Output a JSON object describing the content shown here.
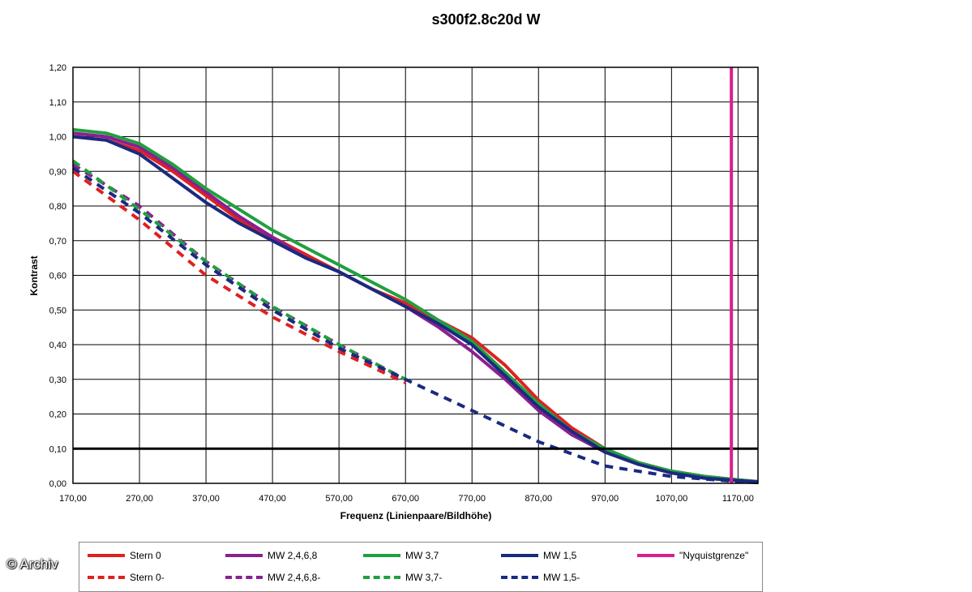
{
  "chart_data": {
    "type": "line",
    "title": "s300f2.8c20d W",
    "xlabel": "Frequenz (Linienpaare/Bildhöhe)",
    "ylabel": "Kontrast",
    "xlim": [
      170,
      1200
    ],
    "ylim": [
      0,
      1.2
    ],
    "x_ticks": [
      "170,00",
      "270,00",
      "370,00",
      "470,00",
      "570,00",
      "670,00",
      "770,00",
      "870,00",
      "970,00",
      "1070,00",
      "1170,00"
    ],
    "y_ticks": [
      "0,00",
      "0,10",
      "0,20",
      "0,30",
      "0,40",
      "0,50",
      "0,60",
      "0,70",
      "0,80",
      "0,90",
      "1,00",
      "1,10",
      "1,20"
    ],
    "grid": true,
    "reference_line_y": 0.1,
    "nyquist_x": 1160,
    "series": [
      {
        "name": "Stern 0",
        "color": "#e02020",
        "dash": false,
        "x": [
          170,
          220,
          270,
          320,
          370,
          420,
          470,
          520,
          570,
          620,
          670,
          720,
          770,
          820,
          870,
          920,
          970,
          1020,
          1070,
          1120,
          1170,
          1200
        ],
        "y": [
          1.0,
          0.99,
          0.96,
          0.9,
          0.83,
          0.76,
          0.71,
          0.66,
          0.61,
          0.56,
          0.52,
          0.47,
          0.42,
          0.34,
          0.24,
          0.16,
          0.1,
          0.06,
          0.035,
          0.02,
          0.01,
          0.005
        ]
      },
      {
        "name": "MW 2,4,6,8",
        "color": "#8a2090",
        "dash": false,
        "x": [
          170,
          220,
          270,
          320,
          370,
          420,
          470,
          520,
          570,
          620,
          670,
          720,
          770,
          820,
          870,
          920,
          970,
          1020,
          1070,
          1120,
          1170,
          1200
        ],
        "y": [
          1.01,
          1.0,
          0.97,
          0.91,
          0.84,
          0.77,
          0.71,
          0.65,
          0.61,
          0.56,
          0.51,
          0.45,
          0.38,
          0.3,
          0.21,
          0.14,
          0.09,
          0.055,
          0.03,
          0.015,
          0.008,
          0.004
        ]
      },
      {
        "name": "MW 3,7",
        "color": "#20a040",
        "dash": false,
        "x": [
          170,
          220,
          270,
          320,
          370,
          420,
          470,
          520,
          570,
          620,
          670,
          720,
          770,
          820,
          870,
          920,
          970,
          1020,
          1070,
          1120,
          1170,
          1200
        ],
        "y": [
          1.02,
          1.01,
          0.98,
          0.92,
          0.85,
          0.79,
          0.73,
          0.68,
          0.63,
          0.58,
          0.53,
          0.47,
          0.41,
          0.32,
          0.23,
          0.15,
          0.1,
          0.06,
          0.035,
          0.02,
          0.01,
          0.005
        ]
      },
      {
        "name": "MW 1,5",
        "color": "#1a2a80",
        "dash": false,
        "x": [
          170,
          220,
          270,
          320,
          370,
          420,
          470,
          520,
          570,
          620,
          670,
          720,
          770,
          820,
          870,
          920,
          970,
          1020,
          1070,
          1120,
          1170,
          1200
        ],
        "y": [
          1.0,
          0.99,
          0.95,
          0.88,
          0.81,
          0.75,
          0.7,
          0.65,
          0.61,
          0.56,
          0.51,
          0.46,
          0.4,
          0.31,
          0.22,
          0.15,
          0.09,
          0.055,
          0.03,
          0.015,
          0.008,
          0.004
        ]
      },
      {
        "name": "\"Nyquistgrenze\"",
        "color": "#d8208a",
        "dash": false,
        "x": [],
        "y": []
      },
      {
        "name": "Stern 0-",
        "color": "#e02020",
        "dash": true,
        "x": [
          170,
          270,
          370,
          470,
          570,
          670
        ],
        "y": [
          0.9,
          0.76,
          0.6,
          0.48,
          0.38,
          0.29
        ]
      },
      {
        "name": "MW 2,4,6,8-",
        "color": "#8a2090",
        "dash": true,
        "x": [
          170,
          270,
          370,
          470,
          570,
          670
        ],
        "y": [
          0.92,
          0.8,
          0.64,
          0.51,
          0.4,
          0.3
        ]
      },
      {
        "name": "MW 3,7-",
        "color": "#20a040",
        "dash": true,
        "x": [
          170,
          270,
          370,
          470,
          570,
          670
        ],
        "y": [
          0.93,
          0.79,
          0.64,
          0.51,
          0.4,
          0.3
        ]
      },
      {
        "name": "MW 1,5-",
        "color": "#1a2a80",
        "dash": true,
        "x": [
          170,
          270,
          370,
          470,
          570,
          670,
          770,
          870,
          970,
          1070,
          1170,
          1200
        ],
        "y": [
          0.91,
          0.78,
          0.63,
          0.5,
          0.39,
          0.3,
          0.21,
          0.12,
          0.05,
          0.02,
          0.005,
          0.002
        ]
      }
    ]
  },
  "legend": {
    "row1": [
      "Stern 0",
      "MW 2,4,6,8",
      "MW 3,7",
      "MW 1,5",
      "\"Nyquistgrenze\""
    ],
    "row2": [
      "Stern 0-",
      "MW 2,4,6,8-",
      "MW 3,7-",
      "MW 1,5-"
    ]
  },
  "watermark": "© Archiv"
}
